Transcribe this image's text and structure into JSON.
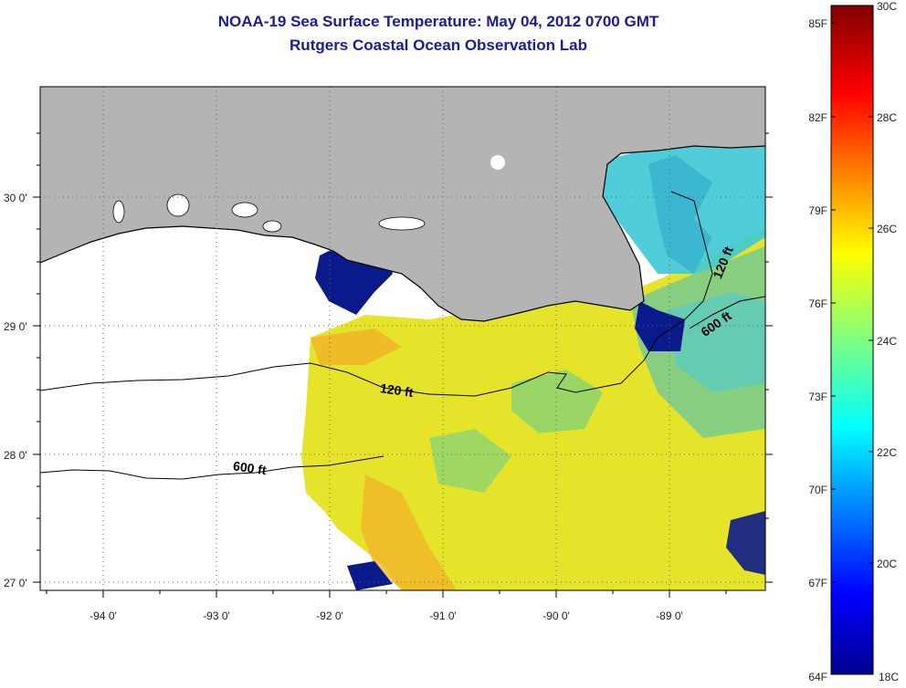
{
  "title": "NOAA-19 Sea Surface Temperature:  May 04, 2012 0700 GMT",
  "subtitle": "Rutgers Coastal Ocean Observation Lab",
  "map": {
    "lat_labels": [
      "30 0'",
      "29 0'",
      "28 0'",
      "27 0'"
    ],
    "lon_labels": [
      "-94 0'",
      "-93 0'",
      "-92 0'",
      "-91 0'",
      "-90 0'",
      "-89 0'"
    ],
    "contour_labels": [
      "120 ft",
      "600 ft",
      "120 ft",
      "600 ft"
    ],
    "land_color": "#b4b4b4",
    "no_data_color": "#ffffff"
  },
  "colorbar": {
    "fahrenheit_labels": [
      "85F",
      "82F",
      "79F",
      "76F",
      "73F",
      "70F",
      "67F",
      "64F"
    ],
    "celsius_labels": [
      "30C",
      "28C",
      "26C",
      "24C",
      "22C",
      "20C",
      "18C"
    ],
    "colormap": "jet",
    "range_c": [
      18,
      30
    ]
  }
}
